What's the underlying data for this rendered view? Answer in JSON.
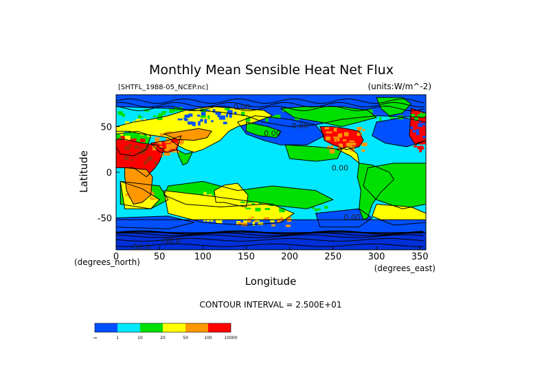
{
  "chart_data": {
    "type": "heatmap",
    "title": "Monthly Mean Sensible Heat Net Flux",
    "file_label": "[SHTFL_1988-05_NCEP.nc]",
    "units_label": "(units:W/m^-2)",
    "xlabel": "Longitude",
    "ylabel": "Latitude",
    "x_unit_label": "(degrees_east)",
    "y_unit_label": "(degrees_north)",
    "xlim": [
      0,
      357
    ],
    "ylim": [
      -90,
      90
    ],
    "x_ticks": [
      0,
      50,
      100,
      150,
      200,
      250,
      300,
      350
    ],
    "y_ticks": [
      50,
      0,
      -50
    ],
    "contour_interval_text": "CONTOUR INTERVAL = 2.500E+01",
    "contour_labels": [
      {
        "text": "0.00",
        "lon": 212,
        "lat": 48
      },
      {
        "text": "0.00",
        "lon": 180,
        "lat": 40
      },
      {
        "text": "0.00",
        "lon": 258,
        "lat": 2
      },
      {
        "text": "0.00",
        "lon": 272,
        "lat": -52
      },
      {
        "text": "-50.0",
        "lon": 63,
        "lat": -78
      },
      {
        "text": "-50.0",
        "lon": 28,
        "lat": -85
      },
      {
        "text": "0.00",
        "lon": 145,
        "lat": 69
      }
    ],
    "legend": {
      "bins": [
        {
          "color": "#0050ff"
        },
        {
          "color": "#00e8ff"
        },
        {
          "color": "#00e000"
        },
        {
          "color": "#ffff00"
        },
        {
          "color": "#ff9800"
        },
        {
          "color": "#ff0000"
        }
      ],
      "tick_labels": [
        "-∞",
        "1",
        "10",
        "20",
        "50",
        "100",
        "10000"
      ]
    }
  },
  "colors": {
    "blue": "#0050ff",
    "cyan": "#00e8ff",
    "green": "#00e000",
    "yellow": "#ffff00",
    "orange": "#ff9800",
    "red": "#ff0000",
    "darkred": "#a52a0a",
    "coast": "#000000"
  }
}
